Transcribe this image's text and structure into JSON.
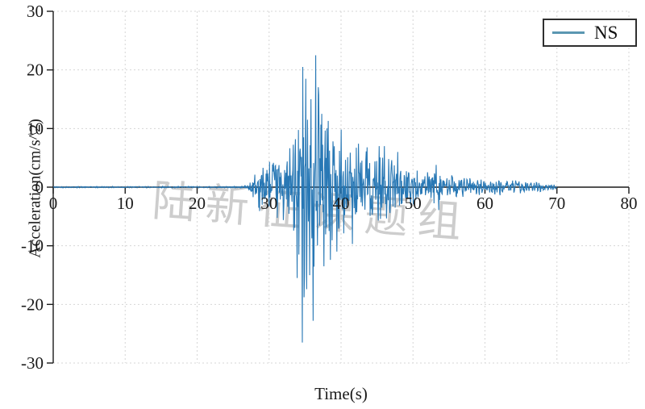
{
  "watermark": {
    "text": "陆新征课题组",
    "color": "#c8c8c8",
    "rotation_deg": 4
  },
  "colors": {
    "series": "#2878b5",
    "legend_sample": "#5b97b1",
    "axis": "#1a1a1a",
    "grid": "#d6d6d6",
    "text": "#1a1a1a",
    "background": "#ffffff"
  },
  "chart_data": {
    "type": "line",
    "title": "",
    "xlabel": "Time(s)",
    "ylabel": "Acceleration(cm/s^2)",
    "xlim": [
      0,
      80
    ],
    "ylim": [
      -30,
      30
    ],
    "xticks": [
      0,
      10,
      20,
      30,
      40,
      50,
      60,
      70,
      80
    ],
    "yticks": [
      -30,
      -20,
      -10,
      0,
      10,
      20,
      30
    ],
    "grid": "dashed both axes, light gray",
    "legend": {
      "position": "top-right",
      "entries": [
        "NS"
      ]
    },
    "series": [
      {
        "name": "NS",
        "color": "#2878b5",
        "t_start": 0,
        "t_end": 70,
        "peak_positive": {
          "t": 36.5,
          "value": 22.5
        },
        "peak_negative": {
          "t": 34.6,
          "value": -26.5
        },
        "envelope": [
          [
            0,
            0.12
          ],
          [
            26,
            0.15
          ],
          [
            27,
            0.5
          ],
          [
            27.7,
            2.0
          ],
          [
            28.4,
            4.0
          ],
          [
            29.3,
            5.2
          ],
          [
            30.3,
            5.0
          ],
          [
            31.3,
            5.5
          ],
          [
            32.3,
            6.3
          ],
          [
            33.2,
            8.8
          ],
          [
            33.9,
            13.5
          ],
          [
            34.6,
            19.5
          ],
          [
            35.2,
            17.0
          ],
          [
            35.8,
            20.5
          ],
          [
            36.5,
            21.5
          ],
          [
            37.2,
            16.0
          ],
          [
            38,
            13.0
          ],
          [
            39,
            11.5
          ],
          [
            40,
            10.5
          ],
          [
            41,
            9.5
          ],
          [
            42,
            8.5
          ],
          [
            43,
            7.5
          ],
          [
            44,
            7.0
          ],
          [
            45,
            7.0
          ],
          [
            46,
            6.2
          ],
          [
            47,
            5.2
          ],
          [
            48,
            4.4
          ],
          [
            49,
            3.7
          ],
          [
            50,
            3.2
          ],
          [
            51,
            2.9
          ],
          [
            52,
            2.7
          ],
          [
            53,
            3.3
          ],
          [
            54,
            2.9
          ],
          [
            55,
            2.3
          ],
          [
            56,
            2.0
          ],
          [
            57,
            1.8
          ],
          [
            58,
            1.6
          ],
          [
            59,
            1.5
          ],
          [
            60,
            1.4
          ],
          [
            61,
            1.3
          ],
          [
            62,
            1.4
          ],
          [
            63,
            1.2
          ],
          [
            64,
            1.2
          ],
          [
            65,
            1.1
          ],
          [
            66,
            1.0
          ],
          [
            67,
            0.9
          ],
          [
            68,
            0.8
          ],
          [
            69,
            0.6
          ],
          [
            70,
            0.35
          ]
        ],
        "signature_peaks": [
          [
            33.9,
            -15.5
          ],
          [
            34.6,
            -26.5
          ],
          [
            34.7,
            20.5
          ],
          [
            35.1,
            18.5
          ],
          [
            35.8,
            15.0
          ],
          [
            36.1,
            -22.8
          ],
          [
            36.5,
            22.5
          ],
          [
            37.3,
            12.5
          ],
          [
            37.6,
            -13.5
          ],
          [
            38.2,
            11.3
          ],
          [
            38.5,
            -12.4
          ],
          [
            39.4,
            -11.0
          ],
          [
            40.0,
            9.8
          ],
          [
            41.6,
            -9.7
          ],
          [
            43.6,
            6.8
          ],
          [
            45.3,
            7.0
          ],
          [
            46.0,
            7.0
          ],
          [
            47.9,
            6.0
          ],
          [
            53.2,
            3.8
          ],
          [
            53.6,
            -3.9
          ]
        ],
        "synthesis": {
          "dt": 0.06,
          "seed": 42
        }
      }
    ]
  }
}
